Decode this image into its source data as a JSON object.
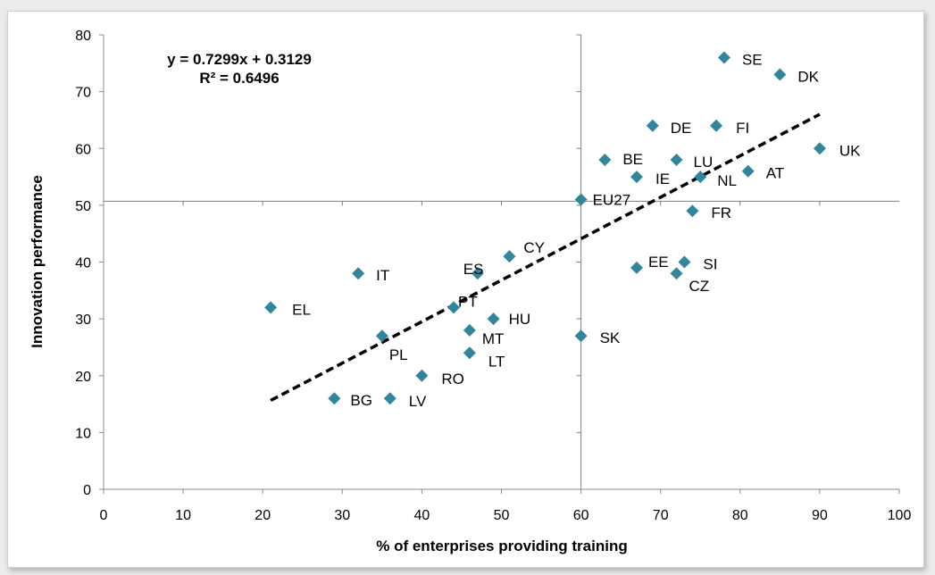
{
  "chart_data": {
    "type": "scatter",
    "title": "",
    "xlabel": "% of enterprises providing training",
    "ylabel": "Innovation performance",
    "xlim": [
      0,
      100
    ],
    "ylim": [
      0,
      80
    ],
    "x_ticks": [
      "0",
      "10",
      "20",
      "30",
      "40",
      "50",
      "60",
      "70",
      "80",
      "90",
      "100"
    ],
    "y_ticks": [
      "0",
      "10",
      "20",
      "30",
      "40",
      "50",
      "60",
      "70",
      "80"
    ],
    "grid": false,
    "reference_lines": {
      "x": 60,
      "y": 50.7
    },
    "marker_color": "#31859c",
    "trendline": {
      "equation": "y = 0.7299x + 0.3129",
      "r_squared": "R² = 0.6496",
      "slope": 0.7299,
      "intercept": 0.3129,
      "x_range": [
        21,
        90
      ],
      "style": "dashed",
      "color": "#000000"
    },
    "points": [
      {
        "label": "SE",
        "x": 78,
        "y": 76
      },
      {
        "label": "DK",
        "x": 85,
        "y": 73
      },
      {
        "label": "DE",
        "x": 69,
        "y": 64
      },
      {
        "label": "FI",
        "x": 77,
        "y": 64
      },
      {
        "label": "UK",
        "x": 90,
        "y": 60
      },
      {
        "label": "BE",
        "x": 63,
        "y": 58
      },
      {
        "label": "LU",
        "x": 72,
        "y": 58
      },
      {
        "label": "IE",
        "x": 67,
        "y": 55
      },
      {
        "label": "NL",
        "x": 75,
        "y": 55
      },
      {
        "label": "AT",
        "x": 81,
        "y": 56
      },
      {
        "label": "EU27",
        "x": 60,
        "y": 51
      },
      {
        "label": "FR",
        "x": 74,
        "y": 49
      },
      {
        "label": "CY",
        "x": 51,
        "y": 41
      },
      {
        "label": "ES",
        "x": 47,
        "y": 38
      },
      {
        "label": "IT",
        "x": 32,
        "y": 38
      },
      {
        "label": "EE",
        "x": 67,
        "y": 39
      },
      {
        "label": "SI",
        "x": 73,
        "y": 40
      },
      {
        "label": "CZ",
        "x": 72,
        "y": 38
      },
      {
        "label": "EL",
        "x": 21,
        "y": 32
      },
      {
        "label": "PT",
        "x": 44,
        "y": 32
      },
      {
        "label": "HU",
        "x": 49,
        "y": 30
      },
      {
        "label": "MT",
        "x": 46,
        "y": 28
      },
      {
        "label": "PL",
        "x": 35,
        "y": 27
      },
      {
        "label": "SK",
        "x": 60,
        "y": 27
      },
      {
        "label": "LT",
        "x": 46,
        "y": 24
      },
      {
        "label": "RO",
        "x": 40,
        "y": 20
      },
      {
        "label": "BG",
        "x": 29,
        "y": 16
      },
      {
        "label": "LV",
        "x": 36,
        "y": 16
      }
    ]
  }
}
